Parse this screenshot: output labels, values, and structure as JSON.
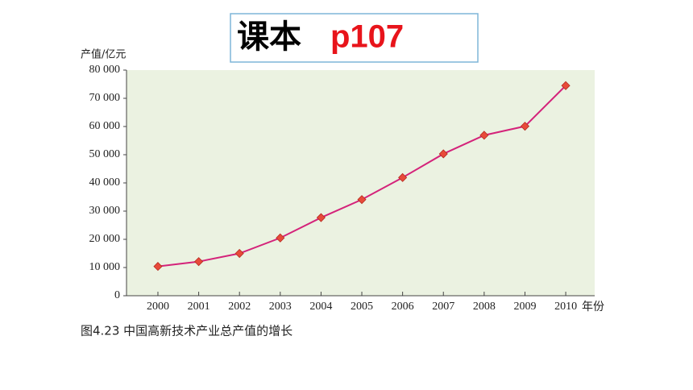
{
  "header": {
    "label": "课本",
    "code": "p107"
  },
  "chart_data": {
    "type": "line",
    "caption": "图4.23  中国高新技术产业总产值的增长",
    "x_label": "年份",
    "y_label": "产值/亿元",
    "x": [
      2000,
      2001,
      2002,
      2003,
      2004,
      2005,
      2006,
      2007,
      2008,
      2009,
      2010
    ],
    "values": [
      10400,
      12100,
      15000,
      20500,
      27700,
      34100,
      41900,
      50300,
      56900,
      60100,
      74500
    ],
    "color": "#d4237a",
    "marker_color": "#e84a3a",
    "xlim": [
      1999.23,
      2010.71
    ],
    "xticks": [
      2000,
      2001,
      2002,
      2003,
      2004,
      2005,
      2006,
      2007,
      2008,
      2009,
      2010
    ],
    "ylim": [
      0,
      80000
    ],
    "yticks": [
      0,
      {
        "value": 10000,
        "label": "10 000"
      },
      {
        "value": 20000,
        "label": "20 000"
      },
      {
        "value": 30000,
        "label": "30 000"
      },
      {
        "value": 40000,
        "label": "40 000"
      },
      {
        "value": 50000,
        "label": "50 000"
      },
      {
        "value": 60000,
        "label": "60 000"
      },
      {
        "value": 70000,
        "label": "70 000"
      },
      {
        "value": 80000,
        "label": "80 000"
      }
    ],
    "plot_background": "#ebf2e1",
    "grid": false
  }
}
